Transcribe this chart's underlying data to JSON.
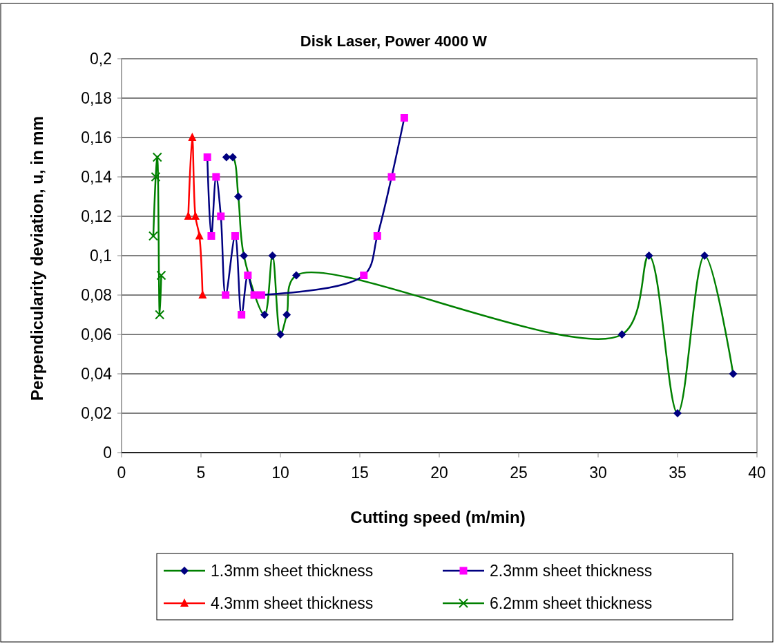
{
  "chart_data": {
    "type": "line",
    "title": "Disk Laser, Power 4000 W",
    "xlabel": "Cutting speed (m/min)",
    "ylabel": "Perpendicularity deviation, u, in mm",
    "xlim": [
      0,
      40
    ],
    "xticks": [
      0,
      5,
      10,
      15,
      20,
      25,
      30,
      35,
      40
    ],
    "ylim": [
      0,
      0.2
    ],
    "yticks": [
      {
        "value": 0,
        "label": "0"
      },
      {
        "value": 0.02,
        "label": "0,02"
      },
      {
        "value": 0.04,
        "label": "0,04"
      },
      {
        "value": 0.06,
        "label": "0,06"
      },
      {
        "value": 0.08,
        "label": "0,08"
      },
      {
        "value": 0.1,
        "label": "0,1"
      },
      {
        "value": 0.12,
        "label": "0,12"
      },
      {
        "value": 0.14,
        "label": "0,14"
      },
      {
        "value": 0.16,
        "label": "0,16"
      },
      {
        "value": 0.18,
        "label": "0,18"
      },
      {
        "value": 0.2,
        "label": "0,2"
      }
    ],
    "grid": "y",
    "legend": "bottom",
    "series": [
      {
        "name": "1.3mm sheet thickness",
        "color": "#008000",
        "marker": "diamond",
        "colors": [
          "#000080",
          "#000080",
          "#000080",
          "#000080",
          "#000080",
          "#000080",
          "#000080",
          "#000080",
          "#000080",
          "#000080",
          "#000080",
          "#000080",
          "#000080",
          "#000080"
        ],
        "x": [
          6.6,
          7.0,
          7.35,
          7.7,
          9.0,
          9.5,
          10.0,
          10.4,
          11.0,
          31.5,
          33.2,
          35.0,
          36.7,
          38.5
        ],
        "values": [
          0.15,
          0.15,
          0.13,
          0.1,
          0.07,
          0.1,
          0.06,
          0.07,
          0.09,
          0.06,
          0.1,
          0.02,
          0.1,
          0.04
        ]
      },
      {
        "name": "2.3mm sheet thickness",
        "color": "#000080",
        "marker": "square",
        "colors": [
          "#ff00ff",
          "#ff00ff",
          "#ff00ff",
          "#ff00ff",
          "#ff00ff",
          "#ff00ff",
          "#ff00ff",
          "#ff00ff",
          "#ff00ff",
          "#ff00ff",
          "#ff00ff",
          "#ff00ff",
          "#ff00ff",
          "#ff00ff"
        ],
        "x": [
          5.4,
          5.65,
          5.95,
          6.25,
          6.55,
          7.15,
          7.55,
          7.95,
          8.35,
          8.8,
          15.25,
          16.1,
          17.0,
          17.8
        ],
        "values": [
          0.15,
          0.11,
          0.14,
          0.12,
          0.08,
          0.11,
          0.07,
          0.09,
          0.08,
          0.08,
          0.09,
          0.11,
          0.14,
          0.17
        ]
      },
      {
        "name": "4.3mm sheet thickness",
        "color": "#ff0000",
        "marker": "triangle",
        "colors": [
          "#ff0000",
          "#ff0000",
          "#ff0000",
          "#ff0000",
          "#ff0000"
        ],
        "x": [
          4.2,
          4.45,
          4.65,
          4.9,
          5.1
        ],
        "values": [
          0.12,
          0.16,
          0.12,
          0.11,
          0.08
        ]
      },
      {
        "name": "6.2mm sheet thickness",
        "color": "#008000",
        "marker": "cross",
        "colors": [
          "#008000",
          "#008000",
          "#008000",
          "#008000",
          "#008000"
        ],
        "x": [
          2.0,
          2.15,
          2.25,
          2.4,
          2.5
        ],
        "values": [
          0.11,
          0.14,
          0.15,
          0.07,
          0.09
        ]
      }
    ]
  }
}
